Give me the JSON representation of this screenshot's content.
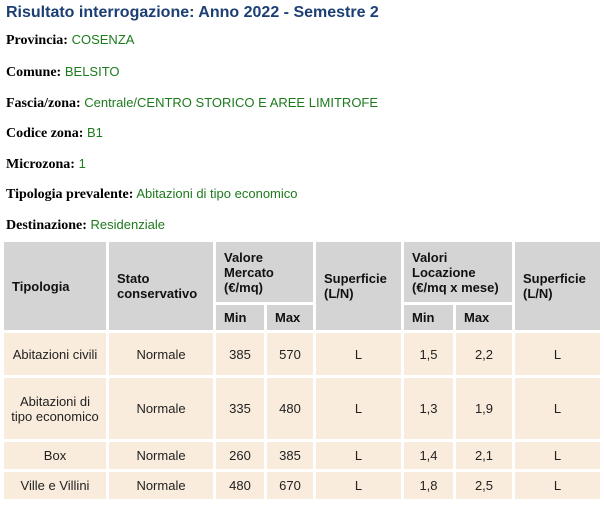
{
  "header": {
    "title": "Risultato interrogazione: Anno 2022 - Semestre 2"
  },
  "fields": [
    {
      "label": "Provincia:",
      "value": "COSENZA"
    },
    {
      "label": "Comune:",
      "value": "BELSITO"
    },
    {
      "label": "Fascia/zona:",
      "value": "Centrale/CENTRO STORICO E AREE LIMITROFE"
    },
    {
      "label": "Codice zona:",
      "value": "B1"
    },
    {
      "label": "Microzona:",
      "value": "1"
    },
    {
      "label": "Tipologia prevalente:",
      "value": "Abitazioni di tipo economico"
    },
    {
      "label": "Destinazione:",
      "value": "Residenziale"
    }
  ],
  "table": {
    "header": [
      "Tipologia",
      "Stato conservativo",
      "Valore Mercato (€/mq)",
      "Superficie (L/N)",
      "Valori Locazione (€/mq x mese)",
      "Superficie (L/N)"
    ],
    "subheader": [
      "Min",
      "Max",
      "Min",
      "Max"
    ],
    "rows": [
      [
        "Abitazioni civili",
        "Normale",
        "385",
        "570",
        "L",
        "1,5",
        "2,2",
        "L"
      ],
      [
        "Abitazioni di tipo economico",
        "Normale",
        "335",
        "480",
        "L",
        "1,3",
        "1,9",
        "L"
      ],
      [
        "Box",
        "Normale",
        "260",
        "385",
        "L",
        "1,4",
        "2,1",
        "L"
      ],
      [
        "Ville e Villini",
        "Normale",
        "480",
        "670",
        "L",
        "1,8",
        "2,5",
        "L"
      ]
    ]
  }
}
